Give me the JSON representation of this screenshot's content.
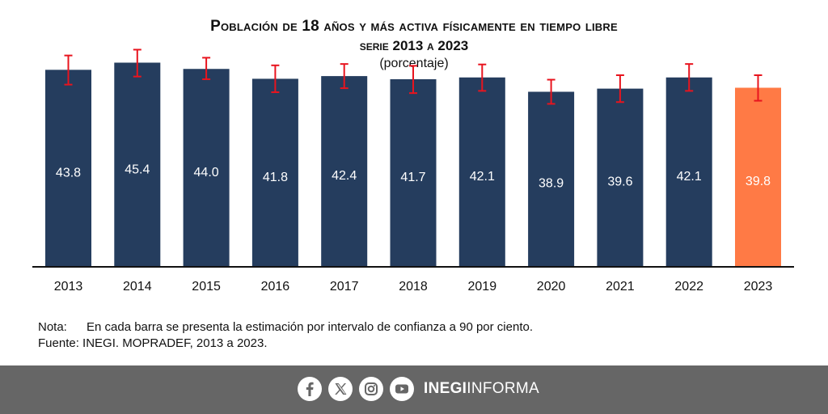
{
  "chart_data": {
    "type": "bar",
    "title": "Población de 18 años y más activa físicamente en tiempo libre",
    "subtitle": "serie 2013 a 2023",
    "unit_label": "(porcentaje)",
    "categories": [
      "2013",
      "2014",
      "2015",
      "2016",
      "2017",
      "2018",
      "2019",
      "2020",
      "2021",
      "2022",
      "2023"
    ],
    "values": [
      43.8,
      45.4,
      44.0,
      41.8,
      42.4,
      41.7,
      42.1,
      38.9,
      39.6,
      42.1,
      39.8
    ],
    "value_labels": [
      "43.8",
      "45.4",
      "44.0",
      "41.8",
      "42.4",
      "41.7",
      "42.1",
      "38.9",
      "39.6",
      "42.1",
      "39.8"
    ],
    "error_lower": [
      40.5,
      42.3,
      41.7,
      38.8,
      39.7,
      38.6,
      39.1,
      36.2,
      36.6,
      39.1,
      36.9
    ],
    "error_upper": [
      47.0,
      48.3,
      46.5,
      44.8,
      45.1,
      44.7,
      45.0,
      41.6,
      42.6,
      45.1,
      42.6
    ],
    "ylim": [
      0,
      50
    ],
    "colors": {
      "bar": "#253d5e",
      "highlight_bar": "#ff7a45",
      "error_bar": "#e8141e",
      "axis": "#111111"
    },
    "highlight_index": 10,
    "grid": false,
    "legend": "none"
  },
  "notes": {
    "nota_label": "Nota:",
    "nota_text": "En cada barra se presenta la estimación por intervalo de confianza a 90 por ciento.",
    "fuente_label": "Fuente:",
    "fuente_text": "INEGI. MOPRADEF, 2013 a 2023."
  },
  "footer": {
    "social_icons": [
      "facebook-icon",
      "x-icon",
      "instagram-icon",
      "youtube-icon"
    ],
    "brand_bold": "INEGI",
    "brand_regular": "INFORMA"
  }
}
